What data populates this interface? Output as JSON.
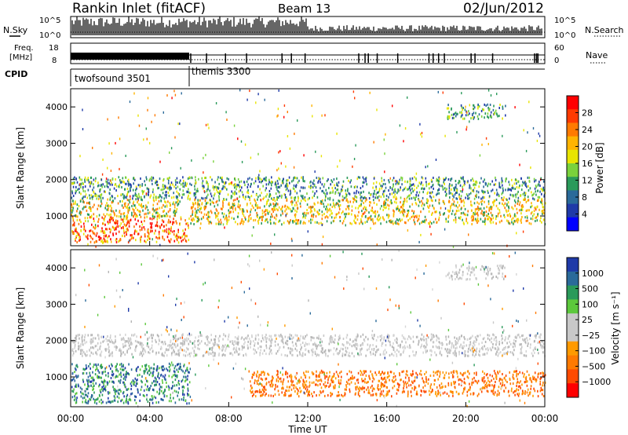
{
  "header": {
    "title": "Rankin Inlet (fitACF)",
    "beam": "Beam 13",
    "date": "02/Jun/2012"
  },
  "top_panels": {
    "nsky_label": "N.Sky",
    "nsearch_label": "N.Search",
    "nsky_ticks": [
      "10^5",
      "10^0"
    ],
    "nsearch_ticks": [
      "10^5",
      "10^0"
    ],
    "freq_label_1": "Freq.",
    "freq_label_2": "[MHz]",
    "freq_ticks": [
      "18",
      "8"
    ],
    "nave_label": "Nave",
    "nave_ticks": [
      "60",
      "0"
    ],
    "cpid_label": "CPID",
    "modes": [
      {
        "name": "twofsound 3501",
        "start_hour": 0,
        "end_hour": 6
      },
      {
        "name": "themis 3300",
        "start_hour": 6,
        "end_hour": 24
      }
    ]
  },
  "time_axis": {
    "label": "Time UT",
    "ticks": [
      "00:00",
      "04:00",
      "08:00",
      "12:00",
      "16:00",
      "20:00",
      "00:00"
    ],
    "tick_hours": [
      0,
      4,
      8,
      12,
      16,
      20,
      24
    ]
  },
  "chart_data": [
    {
      "type": "heatmap",
      "name": "power",
      "ylabel": "Slant Range [km]",
      "yticks": [
        "1000",
        "2000",
        "3000",
        "4000"
      ],
      "ylim": [
        180,
        4500
      ],
      "xlim": [
        0,
        24
      ],
      "colorbar": {
        "label": "Power [dB]",
        "ticks": [
          "28",
          "24",
          "20",
          "16",
          "12",
          "8",
          "4"
        ],
        "colors": [
          "#ff0000",
          "#ff3a00",
          "#ff7a00",
          "#ffb400",
          "#e8e400",
          "#7ad23c",
          "#2a9a5a",
          "#2a6a9a",
          "#1f3aa8",
          "#0000ff"
        ]
      },
      "bands": [
        {
          "t0": 0,
          "t1": 6,
          "r0": 300,
          "r1": 1000,
          "level": "high"
        },
        {
          "t0": 0,
          "t1": 5.5,
          "r0": 1000,
          "r1": 1500,
          "level": "mid"
        },
        {
          "t0": 0,
          "t1": 24,
          "r0": 1500,
          "r1": 2100,
          "level": "low"
        },
        {
          "t0": 6,
          "t1": 24,
          "r0": 800,
          "r1": 1500,
          "level": "mid"
        },
        {
          "t0": 19,
          "t1": 22,
          "r0": 3700,
          "r1": 4100,
          "level": "low"
        }
      ]
    },
    {
      "type": "heatmap",
      "name": "velocity",
      "ylabel": "Slant Range [km]",
      "yticks": [
        "1000",
        "2000",
        "3000",
        "4000"
      ],
      "ylim": [
        180,
        4500
      ],
      "xlim": [
        0,
        24
      ],
      "colorbar": {
        "label": "Velocity [m s⁻¹]",
        "ticks": [
          "1000",
          "500",
          "100",
          "25",
          "−25",
          "−100",
          "−500",
          "−1000"
        ],
        "colors": [
          "#1f3aa8",
          "#2a6a9a",
          "#2a9a5a",
          "#5cc83c",
          "#c8c8c8",
          "#c8c8c8",
          "#ff9a00",
          "#ff7a00",
          "#ff4a00",
          "#ff0000"
        ]
      },
      "bands": [
        {
          "t0": 0,
          "t1": 6,
          "r0": 300,
          "r1": 1400,
          "level": "pos"
        },
        {
          "t0": 0,
          "t1": 24,
          "r0": 1600,
          "r1": 2200,
          "level": "zero"
        },
        {
          "t0": 9,
          "t1": 24,
          "r0": 500,
          "r1": 1200,
          "level": "neg"
        },
        {
          "t0": 19,
          "t1": 22,
          "r0": 3700,
          "r1": 4100,
          "level": "zero"
        }
      ]
    }
  ]
}
